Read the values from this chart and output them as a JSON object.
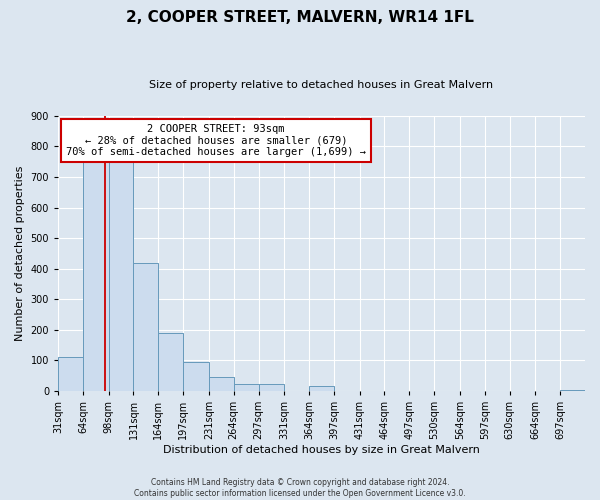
{
  "title": "2, COOPER STREET, MALVERN, WR14 1FL",
  "subtitle": "Size of property relative to detached houses in Great Malvern",
  "xlabel": "Distribution of detached houses by size in Great Malvern",
  "ylabel": "Number of detached properties",
  "bin_labels": [
    "31sqm",
    "64sqm",
    "98sqm",
    "131sqm",
    "164sqm",
    "197sqm",
    "231sqm",
    "264sqm",
    "297sqm",
    "331sqm",
    "364sqm",
    "397sqm",
    "431sqm",
    "464sqm",
    "497sqm",
    "530sqm",
    "564sqm",
    "597sqm",
    "630sqm",
    "664sqm",
    "697sqm"
  ],
  "bin_edges": [
    31,
    64,
    98,
    131,
    164,
    197,
    231,
    264,
    297,
    331,
    364,
    397,
    431,
    464,
    497,
    530,
    564,
    597,
    630,
    664,
    697,
    730
  ],
  "bar_heights": [
    110,
    750,
    750,
    420,
    190,
    95,
    45,
    22,
    22,
    0,
    15,
    0,
    0,
    0,
    0,
    0,
    0,
    0,
    0,
    0,
    5
  ],
  "bar_color": "#ccdcee",
  "bar_edge_color": "#6699bb",
  "property_line_x": 93,
  "property_line_color": "#cc0000",
  "ylim": [
    0,
    900
  ],
  "yticks": [
    0,
    100,
    200,
    300,
    400,
    500,
    600,
    700,
    800,
    900
  ],
  "annotation_title": "2 COOPER STREET: 93sqm",
  "annotation_line1": "← 28% of detached houses are smaller (679)",
  "annotation_line2": "70% of semi-detached houses are larger (1,699) →",
  "annotation_box_facecolor": "#ffffff",
  "annotation_box_edgecolor": "#cc0000",
  "fig_background": "#dce6f0",
  "plot_background": "#dce6f0",
  "grid_color": "#ffffff",
  "footer_line1": "Contains HM Land Registry data © Crown copyright and database right 2024.",
  "footer_line2": "Contains public sector information licensed under the Open Government Licence v3.0.",
  "title_fontsize": 11,
  "subtitle_fontsize": 8,
  "xlabel_fontsize": 8,
  "ylabel_fontsize": 8,
  "tick_fontsize": 7,
  "annotation_fontsize": 7.5,
  "footer_fontsize": 5.5
}
